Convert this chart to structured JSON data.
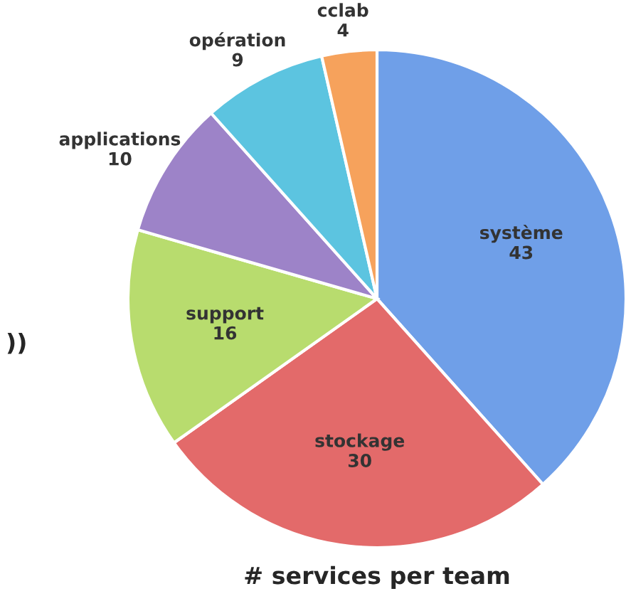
{
  "chart_data": {
    "type": "pie",
    "title": "# services per team",
    "categories": [
      "système",
      "stockage",
      "support",
      "applications",
      "opération",
      "cclab"
    ],
    "values": [
      43,
      30,
      16,
      10,
      9,
      4
    ],
    "colors": [
      "#6f9fe8",
      "#e36a6a",
      "#b8dc6e",
      "#9d83c8",
      "#5cc4e0",
      "#f6a25c"
    ],
    "data_labels": true,
    "annotations": [
      "))"
    ]
  }
}
